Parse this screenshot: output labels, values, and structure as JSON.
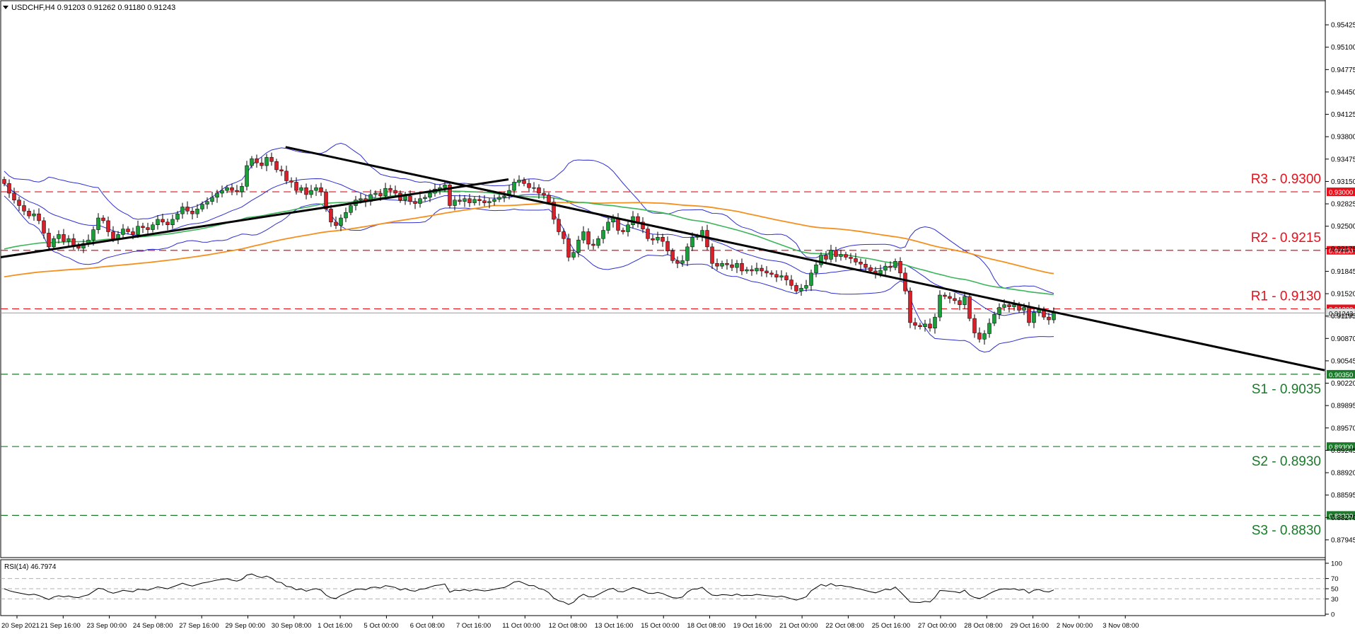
{
  "symbol_header": "USDCHF,H4  0.91203 0.91262 0.91180 0.91243",
  "rsi_header": "RSI(14) 46.7974",
  "chart_data": {
    "type": "line",
    "symbol": "USDCHF,H4",
    "ohlc": {
      "open": 0.91203,
      "high": 0.91262,
      "low": 0.9118,
      "close": 0.91243
    },
    "ylim": [
      0.8779,
      0.9558
    ],
    "price_ticks": [
      "0.95425",
      "0.95100",
      "0.94775",
      "0.94450",
      "0.94125",
      "0.93800",
      "0.93475",
      "0.93150",
      "0.92825",
      "0.92500",
      "0.92175",
      "0.91845",
      "0.91520",
      "0.91195",
      "0.90870",
      "0.90545",
      "0.90220",
      "0.89895",
      "0.89570",
      "0.89245",
      "0.88920",
      "0.88595",
      "0.88270",
      "0.87945"
    ],
    "x_ticks": [
      "20 Sep 2021",
      "21 Sep 16:00",
      "23 Sep 00:00",
      "24 Sep 08:00",
      "27 Sep 16:00",
      "29 Sep 00:00",
      "30 Sep 08:00",
      "1 Oct 16:00",
      "5 Oct 00:00",
      "6 Oct 08:00",
      "7 Oct 16:00",
      "11 Oct 00:00",
      "12 Oct 08:00",
      "13 Oct 16:00",
      "15 Oct 00:00",
      "18 Oct 08:00",
      "19 Oct 16:00",
      "21 Oct 00:00",
      "22 Oct 08:00",
      "25 Oct 16:00",
      "27 Oct 00:00",
      "28 Oct 08:00",
      "29 Oct 16:00",
      "2 Nov 00:00",
      "3 Nov 08:00"
    ],
    "levels": [
      {
        "name": "R3",
        "label": "R3 - 0.9300",
        "value": 0.93,
        "tag": "0.93000",
        "color": "#e8101a"
      },
      {
        "name": "R2",
        "label": "R2 - 0.9215",
        "value": 0.9215,
        "tag": "0.92150",
        "color": "#e8101a"
      },
      {
        "name": "R1",
        "label": "R1 - 0.9130",
        "value": 0.913,
        "tag": "0.91300",
        "color": "#e8101a"
      },
      {
        "name": "S1",
        "label": "S1 - 0.9035",
        "value": 0.9035,
        "tag": "0.90350",
        "color": "#1a7a2a"
      },
      {
        "name": "S2",
        "label": "S2 - 0.8930",
        "value": 0.893,
        "tag": "0.89300",
        "color": "#1a7a2a"
      },
      {
        "name": "S3",
        "label": "S3 - 0.8830",
        "value": 0.883,
        "tag": "0.88300",
        "color": "#1a7a2a"
      }
    ],
    "current_price_tag": "0.91243",
    "closes": [
      0.9312,
      0.9298,
      0.9288,
      0.928,
      0.9272,
      0.9265,
      0.9268,
      0.9258,
      0.924,
      0.922,
      0.9232,
      0.9238,
      0.9228,
      0.9232,
      0.9222,
      0.9218,
      0.9225,
      0.923,
      0.9245,
      0.9262,
      0.9258,
      0.9242,
      0.9232,
      0.9238,
      0.9246,
      0.9242,
      0.9238,
      0.925,
      0.9248,
      0.9245,
      0.9252,
      0.926,
      0.9256,
      0.9252,
      0.926,
      0.9268,
      0.9278,
      0.9272,
      0.9268,
      0.9275,
      0.9282,
      0.9286,
      0.9292,
      0.9298,
      0.9302,
      0.9306,
      0.9302,
      0.93,
      0.9308,
      0.9338,
      0.9348,
      0.9342,
      0.9338,
      0.935,
      0.9344,
      0.9332,
      0.933,
      0.9316,
      0.9314,
      0.9302,
      0.9306,
      0.9296,
      0.9302,
      0.9306,
      0.93,
      0.9275,
      0.9256,
      0.9251,
      0.9262,
      0.927,
      0.928,
      0.9288,
      0.929,
      0.9286,
      0.9296,
      0.9298,
      0.9294,
      0.9305,
      0.9302,
      0.9298,
      0.9288,
      0.9294,
      0.9286,
      0.9283,
      0.929,
      0.9292,
      0.9298,
      0.9304,
      0.9306,
      0.931,
      0.928,
      0.9288,
      0.9286,
      0.929,
      0.9284,
      0.9289,
      0.9287,
      0.9284,
      0.9286,
      0.9289,
      0.9292,
      0.9294,
      0.9302,
      0.9314,
      0.9317,
      0.9312,
      0.9306,
      0.9306,
      0.9298,
      0.9295,
      0.9285,
      0.926,
      0.9242,
      0.9232,
      0.9205,
      0.9212,
      0.923,
      0.9242,
      0.9224,
      0.9222,
      0.9232,
      0.9244,
      0.9256,
      0.9262,
      0.9244,
      0.9242,
      0.9252,
      0.9264,
      0.9256,
      0.9246,
      0.9232,
      0.923,
      0.9234,
      0.9228,
      0.9214,
      0.92,
      0.9196,
      0.92,
      0.922,
      0.9234,
      0.9235,
      0.9244,
      0.922,
      0.9196,
      0.9192,
      0.9196,
      0.9194,
      0.919,
      0.9196,
      0.9185,
      0.9187,
      0.9185,
      0.9189,
      0.9185,
      0.9182,
      0.918,
      0.9176,
      0.9178,
      0.9172,
      0.9164,
      0.9156,
      0.916,
      0.9164,
      0.9182,
      0.9194,
      0.9208,
      0.9202,
      0.9215,
      0.9206,
      0.9209,
      0.9205,
      0.9203,
      0.9198,
      0.9195,
      0.919,
      0.9185,
      0.9181,
      0.9186,
      0.9192,
      0.919,
      0.9199,
      0.9182,
      0.9156,
      0.911,
      0.9106,
      0.9104,
      0.9108,
      0.9102,
      0.9118,
      0.915,
      0.9148,
      0.9145,
      0.9142,
      0.9136,
      0.9148,
      0.9116,
      0.9095,
      0.9086,
      0.9094,
      0.9109,
      0.9122,
      0.9132,
      0.9136,
      0.9133,
      0.9136,
      0.9128,
      0.9132,
      0.911,
      0.9125,
      0.9129,
      0.9118,
      0.9114,
      0.9124
    ],
    "trendlines": [
      {
        "name": "rising",
        "from": [
          "20 Sep 2021",
          0.9205
        ],
        "to": [
          "7 Oct 16:00",
          0.9318
        ]
      },
      {
        "name": "falling",
        "from": [
          "30 Sep 08:00",
          0.9365
        ],
        "to": [
          "3 Nov 08:00",
          0.9103
        ]
      }
    ],
    "rsi": {
      "label": "RSI(14)",
      "value": 46.7974,
      "ticks": [
        "100",
        "70",
        "50",
        "30",
        "0"
      ],
      "levels": [
        70,
        50,
        30
      ],
      "ylim": [
        0,
        100
      ]
    },
    "colors": {
      "up": "#1a9e3a",
      "down": "#d8202a",
      "bollinger": "#2f2fd0",
      "ma_fast": "#3cb55a",
      "ma_slow": "#f5901e",
      "trendline": "#000000",
      "rsi": "#000000"
    }
  }
}
